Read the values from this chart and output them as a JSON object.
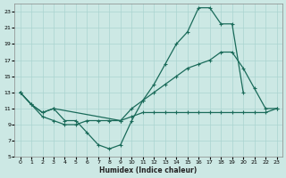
{
  "xlabel": "Humidex (Indice chaleur)",
  "background_color": "#cce8e4",
  "grid_color": "#aad4d0",
  "line_color": "#1a6b5a",
  "xlim": [
    -0.5,
    23.5
  ],
  "ylim": [
    5,
    24
  ],
  "yticks": [
    5,
    7,
    9,
    11,
    13,
    15,
    17,
    19,
    21,
    23
  ],
  "xticks": [
    0,
    1,
    2,
    3,
    4,
    5,
    6,
    7,
    8,
    9,
    10,
    11,
    12,
    13,
    14,
    15,
    16,
    17,
    18,
    19,
    20,
    21,
    22,
    23
  ],
  "line1_x": [
    0,
    1,
    2,
    3,
    4,
    5,
    6,
    7,
    8,
    9,
    10,
    11,
    12,
    13,
    14,
    15,
    16,
    17,
    18,
    19,
    20
  ],
  "line1_y": [
    13,
    11.5,
    10.5,
    11,
    9.5,
    9.5,
    8,
    6.5,
    6,
    6.5,
    9.5,
    12,
    14,
    16.5,
    19,
    20.5,
    23.5,
    23.5,
    21.5,
    21.5,
    13
  ],
  "line2_x": [
    0,
    1,
    2,
    3,
    9,
    10,
    11,
    12,
    13,
    14,
    15,
    16,
    17,
    18,
    19,
    20,
    21,
    22,
    23
  ],
  "line2_y": [
    13,
    11.5,
    10.5,
    11,
    9.5,
    11,
    12,
    13,
    14,
    15,
    16,
    16.5,
    17,
    18,
    18,
    16,
    13.5,
    11,
    11
  ],
  "line3_x": [
    0,
    2,
    3,
    4,
    5,
    6,
    7,
    8,
    9,
    10,
    11,
    12,
    13,
    14,
    15,
    16,
    17,
    18,
    19,
    20,
    21,
    22,
    23
  ],
  "line3_y": [
    13,
    10,
    9.5,
    9,
    9,
    9.5,
    9.5,
    9.5,
    9.5,
    10,
    10.5,
    10.5,
    10.5,
    10.5,
    10.5,
    10.5,
    10.5,
    10.5,
    10.5,
    10.5,
    10.5,
    10.5,
    11
  ]
}
